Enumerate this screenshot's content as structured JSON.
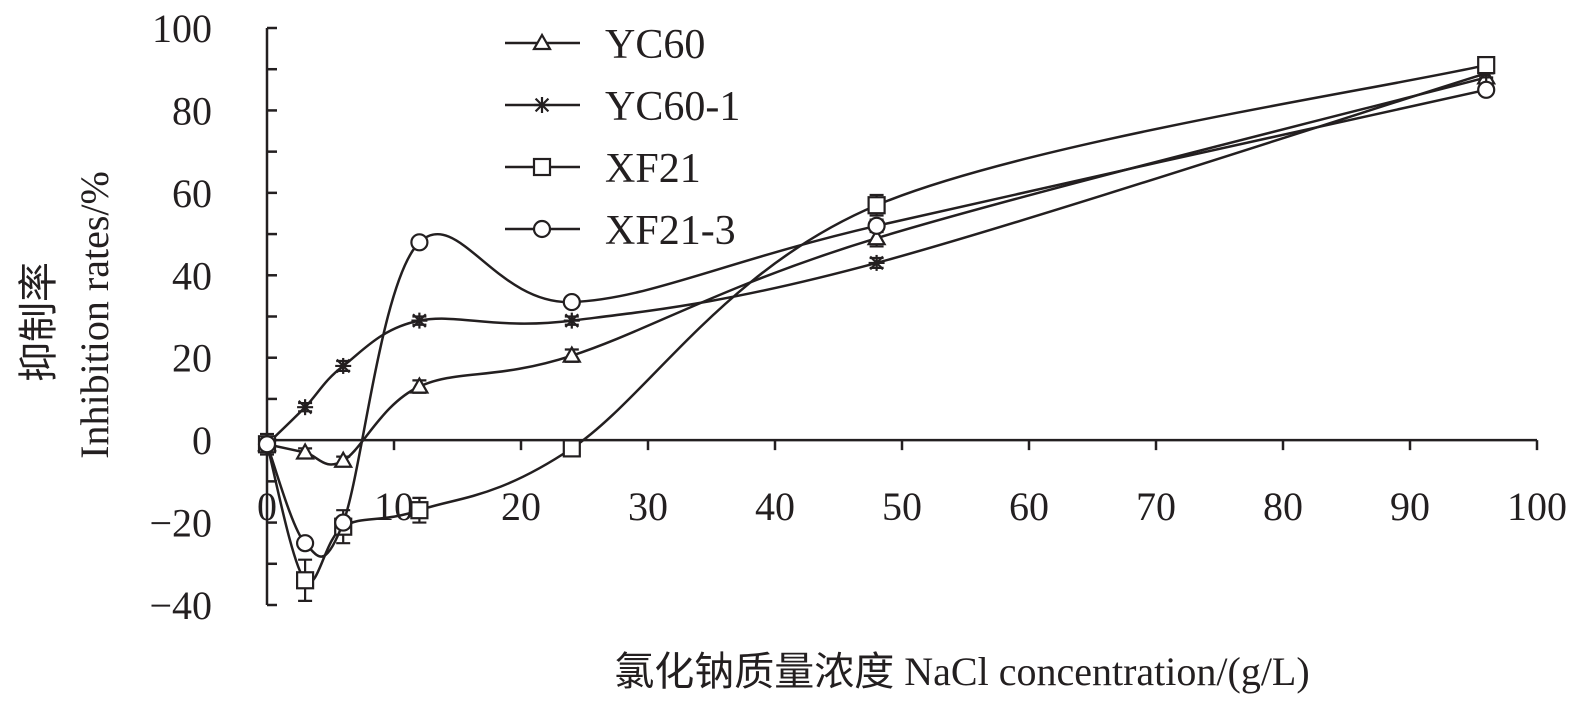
{
  "chart_data": {
    "type": "line",
    "xlabel": "氯化钠质量浓度 NaCl concentration/(g/L)",
    "ylabel_cn": "抑制率",
    "ylabel_en": "Inhibition rates/%",
    "xlim": [
      0,
      100
    ],
    "ylim": [
      -40,
      100
    ],
    "x_ticks": [
      0,
      10,
      20,
      30,
      40,
      50,
      60,
      70,
      80,
      90,
      100
    ],
    "y_ticks": [
      -40,
      -20,
      0,
      20,
      40,
      60,
      80,
      100
    ],
    "x_tick_labels": [
      "0",
      "10",
      "20",
      "30",
      "40",
      "50",
      "60",
      "70",
      "80",
      "90",
      "100"
    ],
    "y_tick_labels": [
      "−40",
      "−20",
      "0",
      "20",
      "40",
      "60",
      "80",
      "100"
    ],
    "grid": false,
    "legend_position": "top-left",
    "series": [
      {
        "name": "YC60",
        "marker": "triangle",
        "x": [
          0,
          3,
          6,
          12,
          24,
          48,
          96
        ],
        "y": [
          -1,
          -3,
          -5,
          13,
          20.5,
          49,
          88
        ],
        "err": [
          1,
          1,
          1,
          1.5,
          1.5,
          2,
          1
        ]
      },
      {
        "name": "YC60-1",
        "marker": "asterisk",
        "x": [
          0,
          3,
          6,
          12,
          24,
          48,
          96
        ],
        "y": [
          -1,
          8,
          18,
          29,
          29,
          43,
          89
        ],
        "err": [
          1,
          1,
          1.2,
          1,
          1,
          1.2,
          1
        ]
      },
      {
        "name": "XF21",
        "marker": "square",
        "x": [
          0,
          3,
          6,
          12,
          24,
          48,
          96
        ],
        "y": [
          -1,
          -34,
          -21,
          -17,
          -2,
          57,
          91
        ],
        "err": [
          2.5,
          5,
          4,
          3,
          1.5,
          2.5,
          1
        ]
      },
      {
        "name": "XF21-3",
        "marker": "circle",
        "x": [
          0,
          3,
          6,
          12,
          24,
          48,
          96
        ],
        "y": [
          -1,
          -25,
          -20,
          48,
          33.5,
          52,
          85
        ],
        "err": [
          1,
          1,
          1,
          1,
          1,
          1.5,
          1
        ]
      }
    ]
  }
}
